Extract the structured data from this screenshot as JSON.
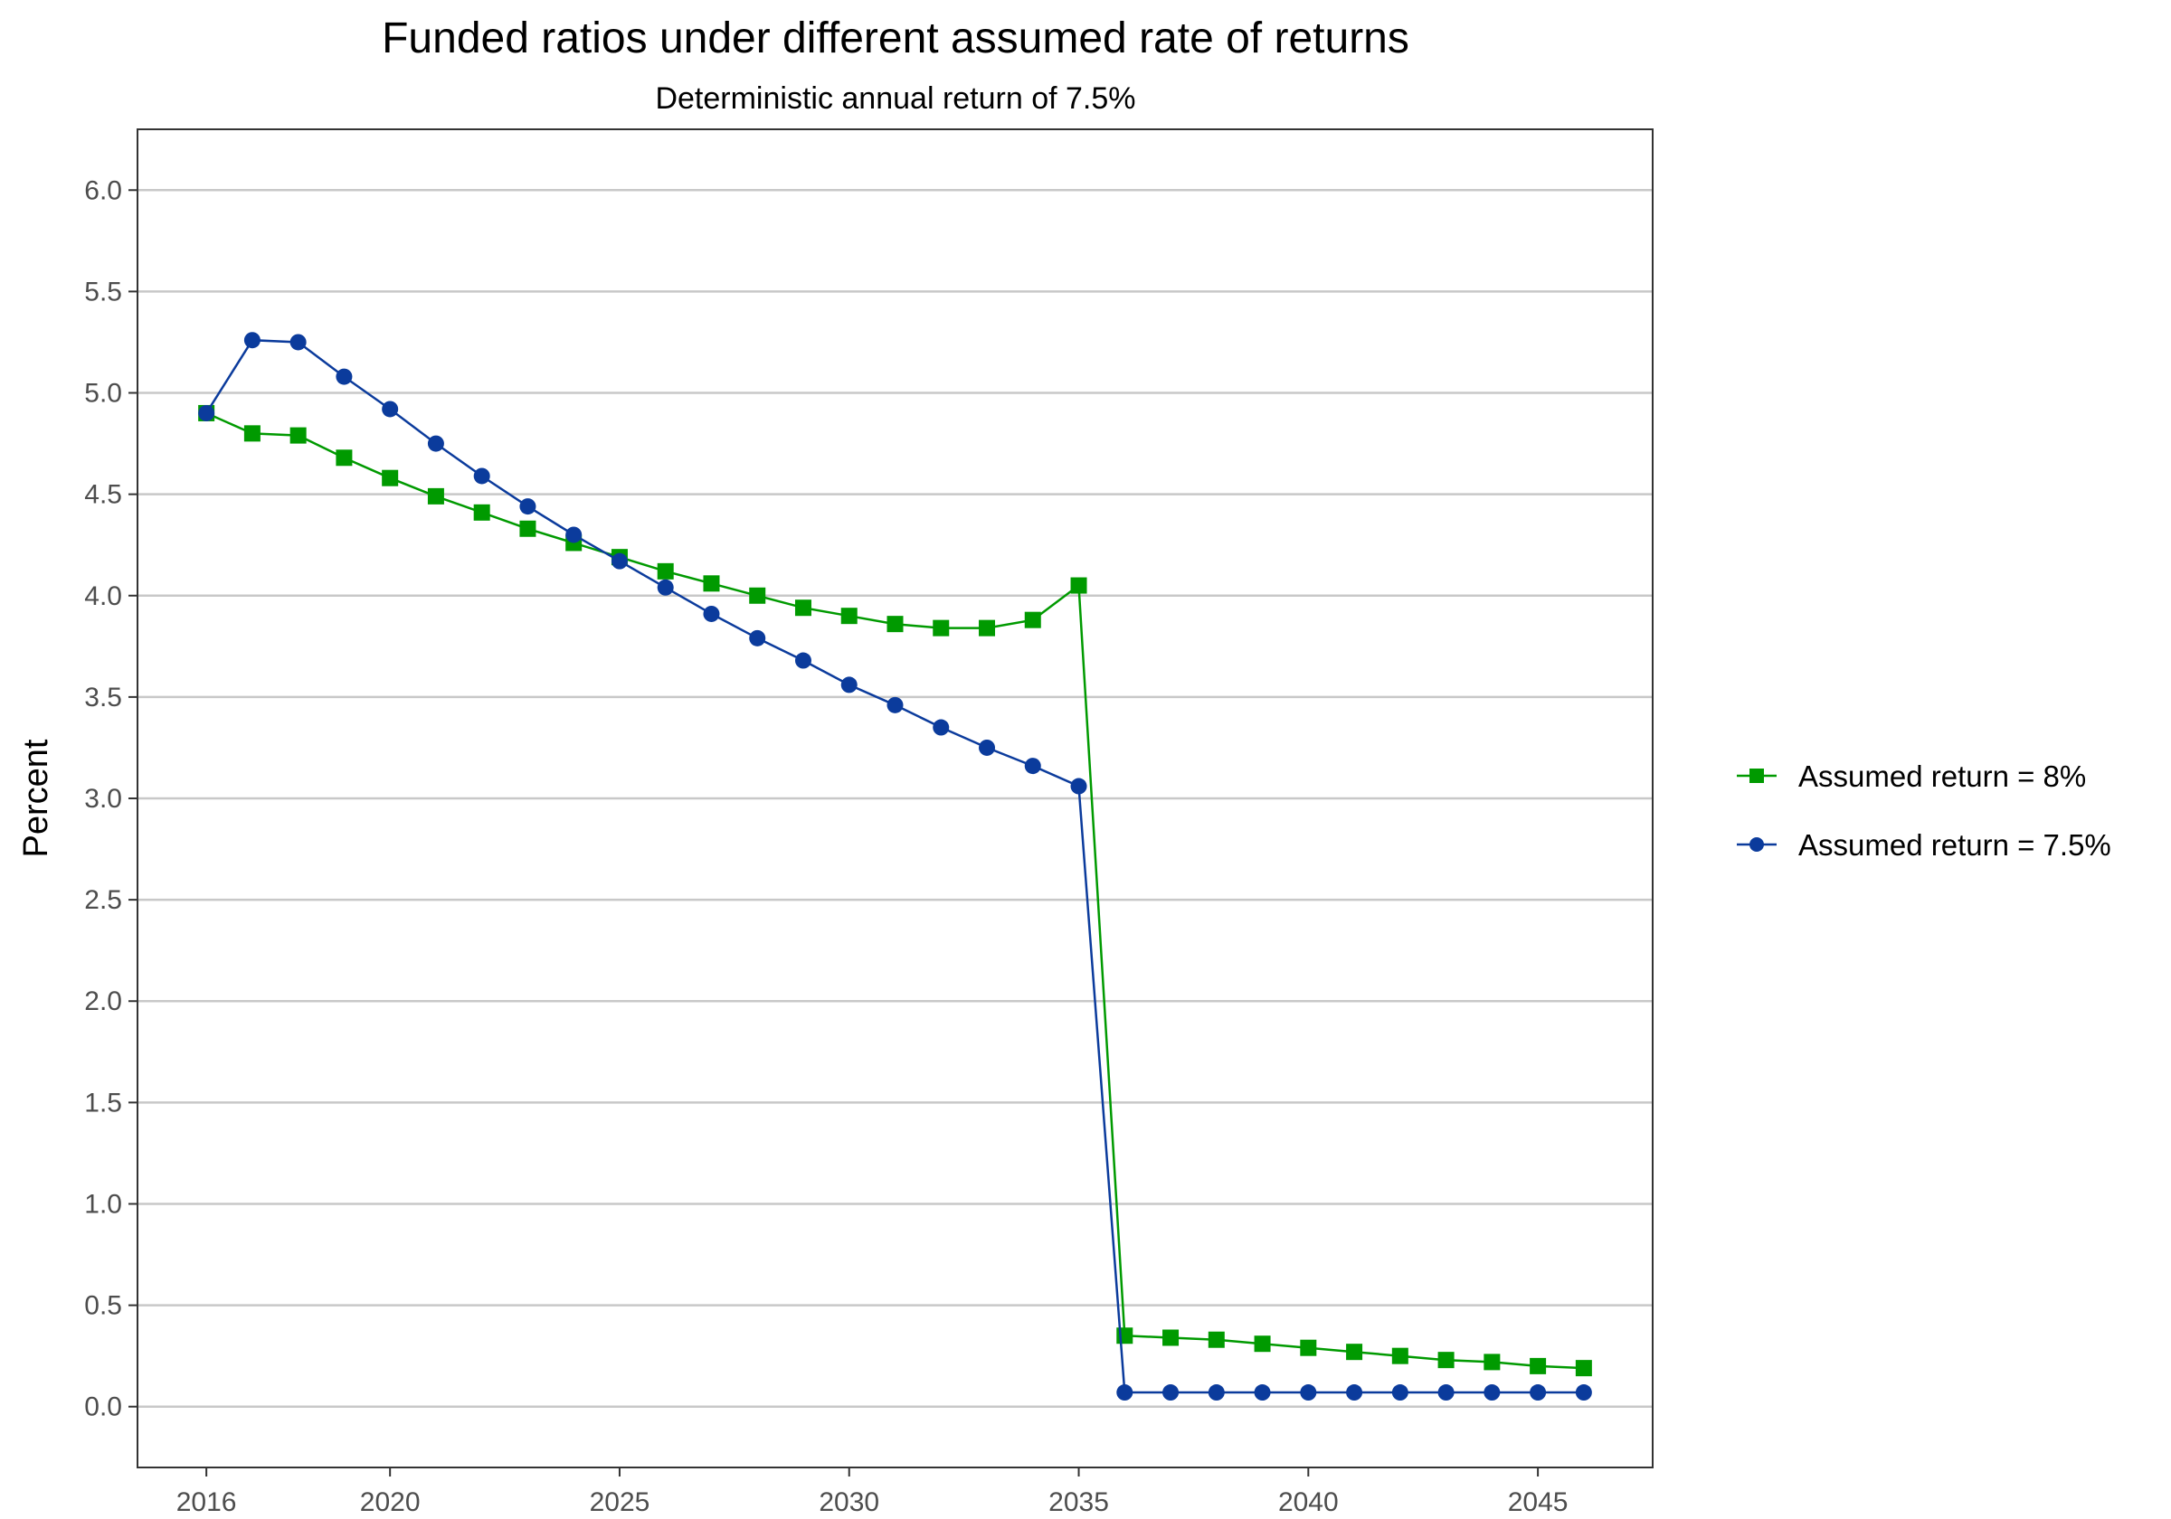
{
  "chart_data": {
    "type": "line",
    "title": "Funded ratios under different assumed rate of returns",
    "subtitle": "Deterministic annual return of 7.5%",
    "xlabel": "",
    "ylabel": "Percent",
    "x": [
      2016,
      2017,
      2018,
      2019,
      2020,
      2021,
      2022,
      2023,
      2024,
      2025,
      2026,
      2027,
      2028,
      2029,
      2030,
      2031,
      2032,
      2033,
      2034,
      2035,
      2036,
      2037,
      2038,
      2039,
      2040,
      2041,
      2042,
      2043,
      2044,
      2045,
      2046
    ],
    "xlim": [
      2014.5,
      2047.5
    ],
    "ylim": [
      -0.3,
      6.3
    ],
    "x_ticks": [
      "2016",
      "2020",
      "2025",
      "2030",
      "2035",
      "2040",
      "2045"
    ],
    "y_ticks": [
      "0.0",
      "0.5",
      "1.0",
      "1.5",
      "2.0",
      "2.5",
      "3.0",
      "3.5",
      "4.0",
      "4.5",
      "5.0",
      "5.5",
      "6.0"
    ],
    "grid": "horizontal major",
    "legend_position": "right",
    "series": [
      {
        "name": "Assumed return  = 8%",
        "color": "#009a00",
        "marker": "square",
        "values": [
          4.9,
          4.8,
          4.79,
          4.68,
          4.58,
          4.49,
          4.41,
          4.33,
          4.26,
          4.19,
          4.12,
          4.06,
          4.0,
          3.94,
          3.9,
          3.86,
          3.84,
          3.84,
          3.88,
          4.05,
          0.35,
          0.34,
          0.33,
          0.31,
          0.29,
          0.27,
          0.25,
          0.23,
          0.22,
          0.2,
          0.19
        ]
      },
      {
        "name": "Assumed return = 7.5%",
        "color": "#0b3b9c",
        "marker": "circle",
        "values": [
          4.9,
          5.26,
          5.25,
          5.08,
          4.92,
          4.75,
          4.59,
          4.44,
          4.3,
          4.17,
          4.04,
          3.91,
          3.79,
          3.68,
          3.56,
          3.46,
          3.35,
          3.25,
          3.16,
          3.06,
          0.07,
          0.07,
          0.07,
          0.07,
          0.07,
          0.07,
          0.07,
          0.07,
          0.07,
          0.07,
          0.07
        ]
      }
    ]
  }
}
